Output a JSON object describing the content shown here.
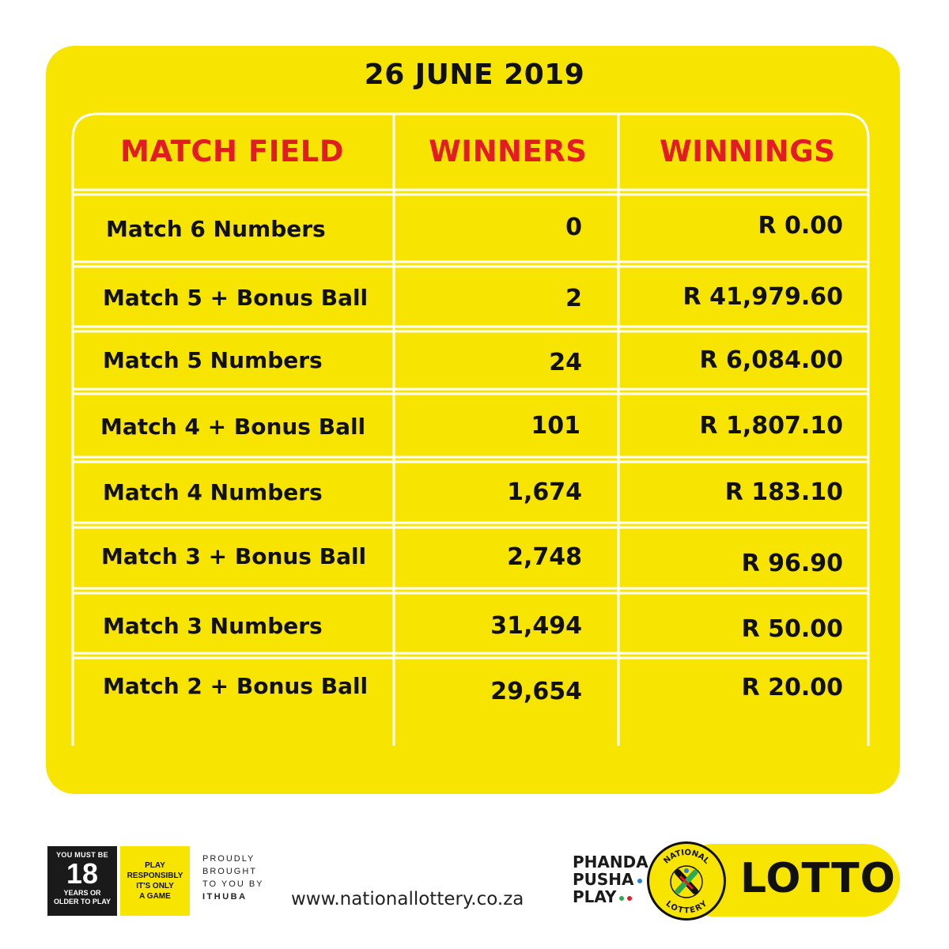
{
  "date": "26 JUNE 2019",
  "table": {
    "headers": [
      "MATCH FIELD",
      "WINNERS",
      "WINNINGS"
    ],
    "rows": [
      {
        "field": "Match 6 Numbers",
        "winners": "0",
        "winnings": "R 0.00"
      },
      {
        "field": "Match 5 + Bonus Ball",
        "winners": "2",
        "winnings": "R 41,979.60"
      },
      {
        "field": "Match 5 Numbers",
        "winners": "24",
        "winnings": "R 6,084.00"
      },
      {
        "field": "Match 4  + Bonus Ball",
        "winners": "101",
        "winnings": "R 1,807.10"
      },
      {
        "field": "Match 4 Numbers",
        "winners": "1,674",
        "winnings": "R 183.10"
      },
      {
        "field": "Match 3 + Bonus Ball",
        "winners": "2,748",
        "winnings": "R 96.90"
      },
      {
        "field": "Match 3 Numbers",
        "winners": "31,494",
        "winnings": "R 50.00"
      },
      {
        "field": "Match 2 + Bonus Ball",
        "winners": "29,654",
        "winnings": "R 20.00"
      }
    ]
  },
  "footer": {
    "age_top": "YOU MUST BE",
    "age_number": "18",
    "age_bottom_1": "YEARS OR",
    "age_bottom_2": "OLDER TO PLAY",
    "responsible_1": "PLAY",
    "responsible_2": "RESPONSIBLY",
    "responsible_3": "IT'S ONLY",
    "responsible_4": "A GAME",
    "proudly_1": "PROUDLY",
    "proudly_2": "BROUGHT",
    "proudly_3": "TO YOU BY",
    "proudly_4": "ITHUBA",
    "url": "www.nationallottery.co.za",
    "slogan_1": "PHANDA",
    "slogan_2": "PUSHA",
    "slogan_3": "PLAY",
    "seal_top": "NATIONAL",
    "seal_bottom": "LOTTERY",
    "logo": "LOTTO"
  },
  "colors": {
    "accent_yellow": "#f7e400",
    "header_red": "#e31b23",
    "text_dark": "#111111"
  }
}
